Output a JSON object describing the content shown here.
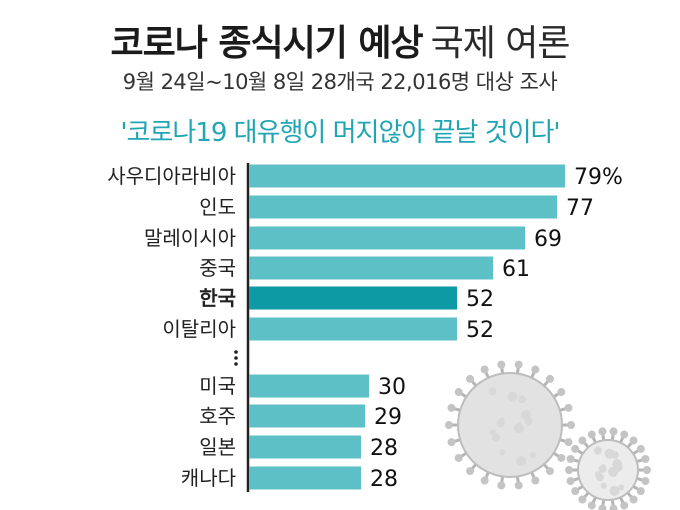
{
  "header": {
    "title_bold": "코로나 종식시기 예상",
    "title_normal": "국제 여론",
    "subtitle": "9월 24일~10월 8일 28개국 22,016명 대상 조사",
    "question": "'코로나19 대유행이 머지않아 끝날 것이다'"
  },
  "chart_data": {
    "type": "bar",
    "orientation": "horizontal",
    "categories": [
      "사우디아라비아",
      "인도",
      "말레이시아",
      "중국",
      "한국",
      "이탈리아",
      "미국",
      "호주",
      "일본",
      "캐나다"
    ],
    "values": [
      79,
      77,
      69,
      61,
      52,
      52,
      30,
      29,
      28,
      28
    ],
    "value_labels": [
      "79%",
      "77",
      "69",
      "61",
      "52",
      "52",
      "30",
      "29",
      "28",
      "28"
    ],
    "highlight": "한국",
    "ellipsis_after": "이탈리아",
    "colors": {
      "bar": "#5cc0c6",
      "bar_highlight": "#0e9aa4",
      "axis": "#222222",
      "title": "#1b1b1b",
      "question": "#1fa5b3"
    }
  }
}
